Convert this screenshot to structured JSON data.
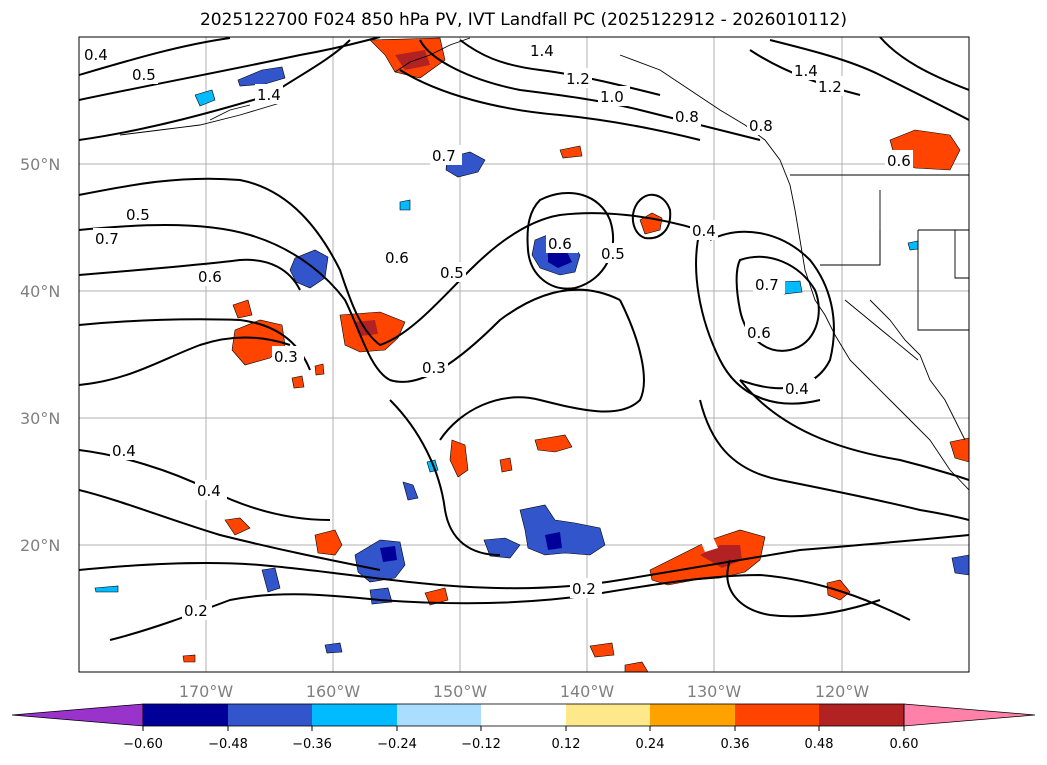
{
  "title": "2025122700 F024 850 hPa PV, IVT Landfall PC (2025122912 - 2026010112)",
  "map": {
    "lon_range": [
      180,
      110
    ],
    "lat_range": [
      10,
      60
    ],
    "lon_ticks": [
      "170°W",
      "160°W",
      "150°W",
      "140°W",
      "130°W",
      "120°W"
    ],
    "lat_ticks": [
      "20°N",
      "30°N",
      "40°N",
      "50°N"
    ],
    "grid": true,
    "contour_labels": [
      "0.4",
      "0.5",
      "1.4",
      "1.4",
      "1.2",
      "1.0",
      "0.8",
      "1.4",
      "1.2",
      "0.8",
      "0.7",
      "0.6",
      "0.5",
      "0.7",
      "0.6",
      "0.6",
      "0.5",
      "0.6",
      "0.5",
      "0.4",
      "0.7",
      "0.6",
      "0.3",
      "0.3",
      "0.4",
      "0.4",
      "0.4",
      "0.2",
      "0.2"
    ]
  },
  "colorbar": {
    "ticks": [
      "−0.60",
      "−0.48",
      "−0.36",
      "−0.24",
      "−0.12",
      "0.12",
      "0.24",
      "0.36",
      "0.48",
      "0.60"
    ],
    "colors": [
      "#9933cc",
      "#000099",
      "#3355cc",
      "#00bbff",
      "#aaddff",
      "#ffffff",
      "#ffe88a",
      "#ffa200",
      "#ff4400",
      "#b22222",
      "#ff80a8"
    ]
  }
}
